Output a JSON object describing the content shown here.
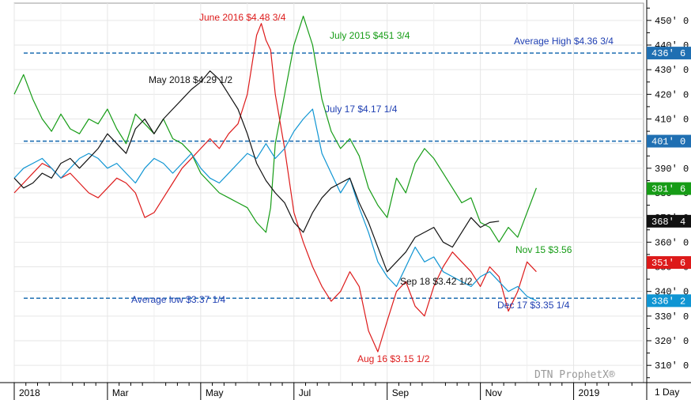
{
  "chart_data": {
    "type": "line",
    "watermark": "DTN ProphetX®",
    "interval_label": "1 Day",
    "y_ticks": [
      {
        "v": 310,
        "t": "310' 0"
      },
      {
        "v": 320,
        "t": "320' 0"
      },
      {
        "v": 330,
        "t": "330' 0"
      },
      {
        "v": 340,
        "t": "340' 0"
      },
      {
        "v": 350,
        "t": "350' 0"
      },
      {
        "v": 360,
        "t": "360' 0"
      },
      {
        "v": 370,
        "t": "370' 0"
      },
      {
        "v": 380,
        "t": "380' 0"
      },
      {
        "v": 390,
        "t": "390' 0"
      },
      {
        "v": 400,
        "t": "400' 0"
      },
      {
        "v": 410,
        "t": "410' 0"
      },
      {
        "v": 420,
        "t": "420' 0"
      },
      {
        "v": 430,
        "t": "430' 0"
      },
      {
        "v": 440,
        "t": "440' 0"
      },
      {
        "v": 450,
        "t": "450' 0"
      }
    ],
    "ylim": [
      303,
      457
    ],
    "x_range": [
      0,
      13.5
    ],
    "x_ticks": [
      {
        "x": 0.0,
        "t": "2018"
      },
      {
        "x": 2.0,
        "t": "Mar"
      },
      {
        "x": 4.0,
        "t": "May"
      },
      {
        "x": 6.0,
        "t": "Jul"
      },
      {
        "x": 8.0,
        "t": "Sep"
      },
      {
        "x": 10.0,
        "t": "Nov"
      },
      {
        "x": 12.0,
        "t": "2019"
      }
    ],
    "reference_lines": [
      {
        "value": 436.75,
        "badge": "436' 6",
        "color": "#1f6fb2",
        "label": "Average High $4.36 3/4"
      },
      {
        "value": 401.0,
        "badge": "401' 0",
        "color": "#1f6fb2",
        "label": ""
      },
      {
        "value": 337.25,
        "badge": "",
        "color": "#1f6fb2",
        "label": "Average low $3.37 1/4"
      }
    ],
    "series": [
      {
        "color": "#169c16",
        "badge": "381' 6",
        "badge_value": 381.75,
        "x": [
          0.0,
          0.2,
          0.4,
          0.6,
          0.8,
          1.0,
          1.2,
          1.4,
          1.6,
          1.8,
          2.0,
          2.2,
          2.4,
          2.6,
          2.8,
          3.0,
          3.2,
          3.4,
          3.6,
          3.8,
          4.0,
          4.2,
          4.4,
          4.6,
          4.8,
          5.0,
          5.2,
          5.4,
          5.5,
          5.6,
          5.8,
          6.0,
          6.2,
          6.4,
          6.6,
          6.8,
          7.0,
          7.2,
          7.4,
          7.6,
          7.8,
          8.0,
          8.2,
          8.4,
          8.6,
          8.8,
          9.0,
          9.2,
          9.4,
          9.6,
          9.8,
          10.0,
          10.2,
          10.4,
          10.6,
          10.8,
          11.0,
          11.2
        ],
        "y": [
          420,
          428,
          418,
          410,
          405,
          412,
          406,
          404,
          410,
          408,
          414,
          406,
          400,
          412,
          408,
          404,
          410,
          402,
          400,
          396,
          388,
          384,
          380,
          378,
          376,
          374,
          368,
          364,
          374,
          400,
          420,
          440,
          451.75,
          440,
          418,
          405,
          398,
          402,
          395,
          382,
          375,
          370,
          386,
          380,
          392,
          398,
          394,
          388,
          382,
          376,
          378,
          368,
          366,
          360,
          366,
          362,
          372,
          382
        ]
      },
      {
        "color": "#dd1a1a",
        "badge": "351' 6",
        "badge_value": 351.75,
        "x": [
          0.0,
          0.2,
          0.4,
          0.6,
          0.8,
          1.0,
          1.2,
          1.4,
          1.6,
          1.8,
          2.0,
          2.2,
          2.4,
          2.6,
          2.8,
          3.0,
          3.2,
          3.4,
          3.6,
          3.8,
          4.0,
          4.2,
          4.4,
          4.6,
          4.8,
          5.0,
          5.1,
          5.2,
          5.3,
          5.4,
          5.5,
          5.6,
          5.8,
          6.0,
          6.2,
          6.4,
          6.6,
          6.8,
          7.0,
          7.2,
          7.4,
          7.6,
          7.8,
          8.0,
          8.2,
          8.4,
          8.6,
          8.8,
          9.0,
          9.2,
          9.4,
          9.6,
          9.8,
          10.0,
          10.2,
          10.4,
          10.6,
          10.8,
          11.0,
          11.2
        ],
        "y": [
          380,
          384,
          388,
          392,
          390,
          386,
          388,
          384,
          380,
          378,
          382,
          386,
          384,
          380,
          370,
          372,
          378,
          384,
          390,
          394,
          398,
          402,
          398,
          404,
          408,
          420,
          432,
          444,
          448.75,
          442,
          438,
          420,
          398,
          372,
          360,
          350,
          342,
          336,
          340,
          348,
          342,
          324,
          315.5,
          328,
          340,
          344,
          334,
          330,
          342,
          350,
          356,
          352,
          348,
          342,
          350,
          346,
          332,
          340,
          352,
          348
        ]
      },
      {
        "color": "#0f95d3",
        "badge": "336' 2",
        "badge_value": 336.25,
        "x": [
          0.0,
          0.2,
          0.4,
          0.6,
          0.8,
          1.0,
          1.2,
          1.4,
          1.6,
          1.8,
          2.0,
          2.2,
          2.4,
          2.6,
          2.8,
          3.0,
          3.2,
          3.4,
          3.6,
          3.8,
          4.0,
          4.2,
          4.4,
          4.6,
          4.8,
          5.0,
          5.2,
          5.4,
          5.6,
          5.8,
          6.0,
          6.2,
          6.4,
          6.6,
          6.8,
          7.0,
          7.2,
          7.4,
          7.6,
          7.8,
          8.0,
          8.2,
          8.4,
          8.6,
          8.8,
          9.0,
          9.2,
          9.4,
          9.6,
          9.8,
          10.0,
          10.2,
          10.4,
          10.6,
          10.8,
          11.0,
          11.2
        ],
        "y": [
          386,
          390,
          392,
          394,
          390,
          386,
          390,
          394,
          396,
          394,
          390,
          392,
          388,
          384,
          390,
          394,
          392,
          388,
          392,
          396,
          390,
          386,
          384,
          388,
          392,
          396,
          394,
          400,
          394,
          398,
          405,
          410,
          414,
          396,
          388,
          380,
          386,
          374,
          364,
          352,
          346,
          342,
          350,
          358,
          352,
          354,
          348,
          346,
          344,
          342,
          346,
          348,
          344,
          340,
          342,
          338,
          336.25
        ]
      },
      {
        "color": "#111111",
        "badge": "368' 4",
        "badge_value": 368.5,
        "x": [
          0.0,
          0.2,
          0.4,
          0.6,
          0.8,
          1.0,
          1.2,
          1.4,
          1.6,
          1.8,
          2.0,
          2.2,
          2.4,
          2.6,
          2.8,
          3.0,
          3.2,
          3.4,
          3.6,
          3.8,
          4.0,
          4.2,
          4.4,
          4.6,
          4.8,
          5.0,
          5.2,
          5.4,
          5.6,
          5.8,
          6.0,
          6.2,
          6.4,
          6.6,
          6.8,
          7.0,
          7.2,
          7.4,
          7.6,
          7.8,
          8.0,
          8.2,
          8.4,
          8.6,
          8.8,
          9.0,
          9.2,
          9.4,
          9.6,
          9.8,
          10.0,
          10.2,
          10.4
        ],
        "y": [
          386,
          382,
          384,
          388,
          386,
          392,
          394,
          390,
          394,
          398,
          404,
          400,
          396,
          406,
          410,
          404,
          410,
          414,
          418,
          422,
          425,
          429.5,
          426,
          420,
          414,
          404,
          392,
          385,
          380,
          376,
          368,
          364,
          372,
          378,
          382,
          384,
          386,
          376,
          368,
          358,
          348,
          352,
          356,
          362,
          364,
          366,
          360,
          358,
          364,
          370,
          366,
          368,
          368.5
        ]
      }
    ],
    "annotations": [
      {
        "text": "June 2016 $4.48 3/4",
        "color": "#dd1a1a"
      },
      {
        "text": "July 2015 $451 3/4",
        "color": "#169c16"
      },
      {
        "text": "May 2018 $4.29 1/2",
        "color": "#111111"
      },
      {
        "text": "July 17 $4.17 1/4",
        "color": "#1f3fb2"
      },
      {
        "text": "Nov 15 $3.56",
        "color": "#169c16"
      },
      {
        "text": "Sep 18 $3.42 1/2",
        "color": "#111111"
      },
      {
        "text": "Dec 17 $3.35 1/4",
        "color": "#1f3fb2"
      },
      {
        "text": "Aug 16 $3.15 1/2",
        "color": "#dd1a1a"
      },
      {
        "text": "Average High $4.36 3/4",
        "color": "#1f3fb2"
      },
      {
        "text": "Average low $3.37 1/4",
        "color": "#1f3fb2"
      }
    ]
  }
}
